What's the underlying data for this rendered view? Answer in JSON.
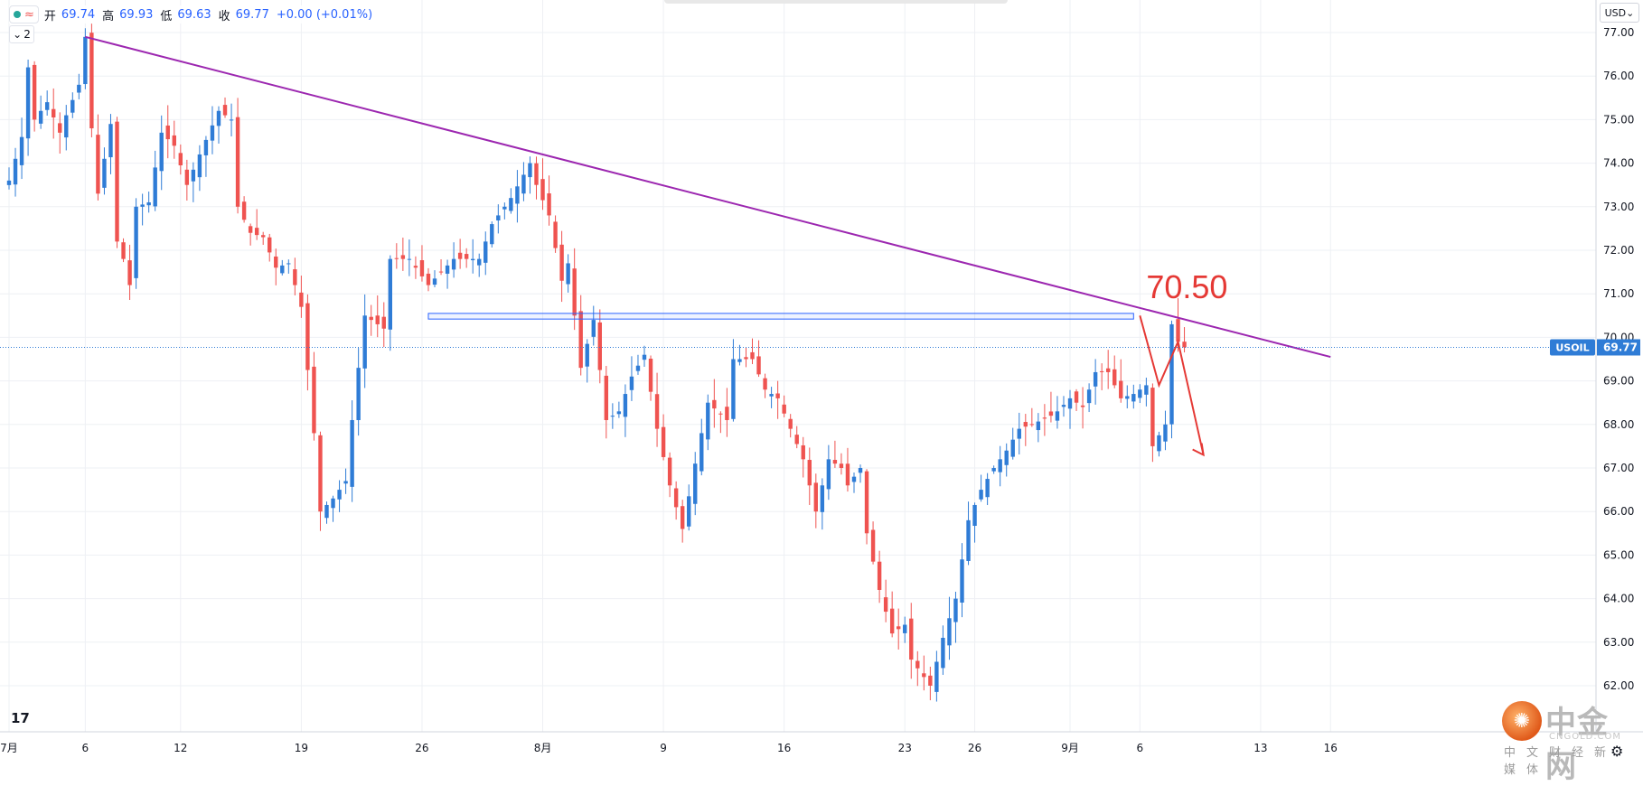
{
  "legend": {
    "open_label": "开",
    "open_value": "69.74",
    "high_label": "高",
    "high_value": "69.93",
    "low_label": "低",
    "low_value": "69.63",
    "close_label": "收",
    "close_value": "69.77",
    "change": "+0.00 (+0.01%)",
    "collapse_label": "2"
  },
  "currency": "USD",
  "tradingview_logo": "17",
  "watermark": {
    "name_cn": "中金网",
    "name_en": "CNGOLD.COM",
    "tagline": "中文财经新媒体"
  },
  "colors": {
    "up": "#2f7cd6",
    "down": "#ef5350",
    "trendline": "#9c27b0",
    "annotation": "#e53935",
    "zone": "#2962ff"
  },
  "chart_data": {
    "type": "candlestick",
    "symbol": "USOIL",
    "last_price": "69.77",
    "ylim": [
      61.4,
      77.3
    ],
    "y_ticks": [
      "62.00",
      "63.00",
      "64.00",
      "65.00",
      "66.00",
      "67.00",
      "68.00",
      "69.00",
      "70.00",
      "71.00",
      "72.00",
      "73.00",
      "74.00",
      "75.00",
      "76.00",
      "77.00"
    ],
    "x_ticks": [
      {
        "label": "7月",
        "bar": 0
      },
      {
        "label": "6",
        "bar": 12
      },
      {
        "label": "12",
        "bar": 27
      },
      {
        "label": "19",
        "bar": 46
      },
      {
        "label": "26",
        "bar": 65
      },
      {
        "label": "8月",
        "bar": 84
      },
      {
        "label": "9",
        "bar": 103
      },
      {
        "label": "16",
        "bar": 122
      },
      {
        "label": "23",
        "bar": 141
      },
      {
        "label": "26",
        "bar": 152
      },
      {
        "label": "9月",
        "bar": 167
      },
      {
        "label": "6",
        "bar": 178
      },
      {
        "label": "13",
        "bar": 197
      },
      {
        "label": "16",
        "bar": 208
      }
    ],
    "bars_total": 222,
    "keypoints": [
      [
        0,
        73.6
      ],
      [
        2,
        74.6
      ],
      [
        3,
        76.2
      ],
      [
        4,
        75.0
      ],
      [
        6,
        75.4
      ],
      [
        8,
        74.7
      ],
      [
        9,
        75.1
      ],
      [
        11,
        75.8
      ],
      [
        12,
        76.9
      ],
      [
        13,
        74.8
      ],
      [
        14,
        73.3
      ],
      [
        16,
        74.9
      ],
      [
        17,
        72.2
      ],
      [
        18,
        71.8
      ],
      [
        19,
        71.2
      ],
      [
        20,
        73.0
      ],
      [
        22,
        73.1
      ],
      [
        24,
        74.7
      ],
      [
        26,
        74.4
      ],
      [
        28,
        73.5
      ],
      [
        30,
        74.2
      ],
      [
        33,
        75.2
      ],
      [
        35,
        75.0
      ],
      [
        36,
        73.0
      ],
      [
        38,
        72.4
      ],
      [
        40,
        72.3
      ],
      [
        42,
        71.6
      ],
      [
        44,
        71.7
      ],
      [
        46,
        70.7
      ],
      [
        48,
        67.8
      ],
      [
        49,
        66.0
      ],
      [
        51,
        66.3
      ],
      [
        53,
        66.7
      ],
      [
        54,
        68.1
      ],
      [
        56,
        70.5
      ],
      [
        59,
        70.2
      ],
      [
        60,
        71.8
      ],
      [
        63,
        71.8
      ],
      [
        66,
        71.2
      ],
      [
        70,
        71.8
      ],
      [
        74,
        71.8
      ],
      [
        76,
        72.6
      ],
      [
        79,
        73.2
      ],
      [
        82,
        74.0
      ],
      [
        83,
        73.5
      ],
      [
        85,
        72.8
      ],
      [
        87,
        71.3
      ],
      [
        88,
        71.7
      ],
      [
        90,
        69.3
      ],
      [
        92,
        70.4
      ],
      [
        94,
        68.1
      ],
      [
        96,
        68.3
      ],
      [
        98,
        69.1
      ],
      [
        100,
        69.6
      ],
      [
        102,
        67.9
      ],
      [
        104,
        66.6
      ],
      [
        106,
        65.6
      ],
      [
        108,
        67.1
      ],
      [
        110,
        68.5
      ],
      [
        113,
        68.1
      ],
      [
        114,
        69.5
      ],
      [
        117,
        69.5
      ],
      [
        119,
        68.8
      ],
      [
        121,
        68.6
      ],
      [
        123,
        67.9
      ],
      [
        125,
        67.2
      ],
      [
        127,
        66.0
      ],
      [
        129,
        67.2
      ],
      [
        131,
        67.0
      ],
      [
        132,
        66.6
      ],
      [
        134,
        67.0
      ],
      [
        135,
        65.5
      ],
      [
        137,
        64.2
      ],
      [
        139,
        63.2
      ],
      [
        141,
        63.4
      ],
      [
        142,
        62.6
      ],
      [
        143,
        62.4
      ],
      [
        145,
        62.0
      ],
      [
        147,
        63.1
      ],
      [
        149,
        64.0
      ],
      [
        151,
        65.8
      ],
      [
        153,
        66.5
      ],
      [
        155,
        67.0
      ],
      [
        157,
        67.4
      ],
      [
        159,
        67.9
      ],
      [
        161,
        68.0
      ],
      [
        164,
        68.2
      ],
      [
        165,
        68.3
      ],
      [
        167,
        68.6
      ],
      [
        169,
        68.4
      ],
      [
        171,
        69.2
      ],
      [
        173,
        69.2
      ],
      [
        175,
        68.6
      ],
      [
        177,
        68.7
      ],
      [
        179,
        68.9
      ],
      [
        180,
        67.5
      ],
      [
        182,
        68.0
      ],
      [
        183,
        70.3
      ],
      [
        184,
        69.9
      ],
      [
        185,
        69.77
      ]
    ],
    "trendline": [
      [
        12,
        76.9
      ],
      [
        208,
        69.55
      ]
    ],
    "resistance_zone": {
      "from_bar": 66,
      "to_bar": 177,
      "low": 70.42,
      "high": 70.55
    },
    "projection": [
      [
        178,
        70.5
      ],
      [
        181,
        68.9
      ],
      [
        184,
        69.9
      ],
      [
        188,
        67.3
      ]
    ],
    "annotations": [
      {
        "text": "70.50",
        "bar": 179,
        "price": 70.9
      }
    ]
  }
}
